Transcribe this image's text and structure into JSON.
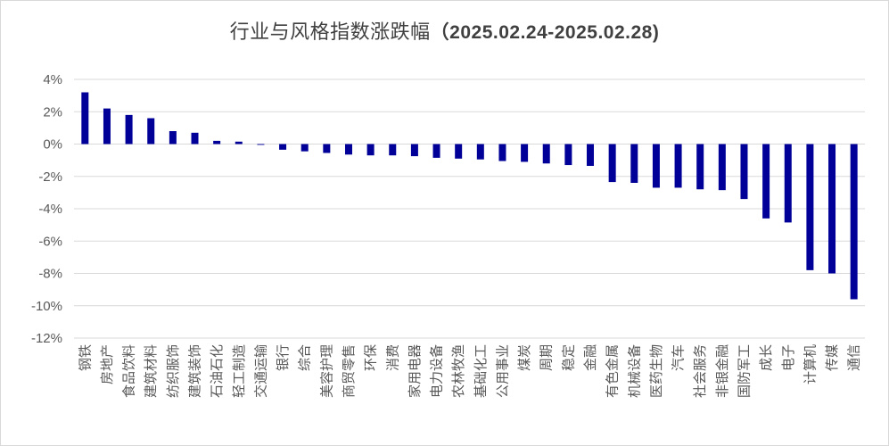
{
  "chart_data": {
    "type": "bar",
    "title": "行业与风格指数涨跌幅",
    "title_paren": "（2025.02.24-2025.02.28)",
    "ylim": [
      -12,
      4
    ],
    "yticks": [
      4,
      2,
      0,
      -2,
      -4,
      -6,
      -8,
      -10,
      -12
    ],
    "ytick_labels": [
      "4%",
      "2%",
      "0%",
      "-2%",
      "-4%",
      "-6%",
      "-8%",
      "-10%",
      "-12%"
    ],
    "grid": true,
    "bar_color": "#000099",
    "categories": [
      "钢铁",
      "房地产",
      "食品饮料",
      "建筑材料",
      "纺织服饰",
      "建筑装饰",
      "石油石化",
      "轻工制造",
      "交通运输",
      "银行",
      "综合",
      "美容护理",
      "商贸零售",
      "环保",
      "消费",
      "家用电器",
      "电力设备",
      "农林牧渔",
      "基础化工",
      "公用事业",
      "煤炭",
      "周期",
      "稳定",
      "金融",
      "有色金属",
      "机械设备",
      "医药生物",
      "汽车",
      "社会服务",
      "非银金融",
      "国防军工",
      "成长",
      "电子",
      "计算机",
      "传媒",
      "通信"
    ],
    "values": [
      3.2,
      2.2,
      1.8,
      1.6,
      0.8,
      0.7,
      0.2,
      0.15,
      -0.05,
      -0.35,
      -0.45,
      -0.55,
      -0.65,
      -0.7,
      -0.7,
      -0.75,
      -0.85,
      -0.9,
      -0.95,
      -1.05,
      -1.1,
      -1.2,
      -1.3,
      -1.35,
      -2.35,
      -2.4,
      -2.7,
      -2.7,
      -2.8,
      -2.85,
      -3.4,
      -4.6,
      -4.85,
      -7.8,
      -8.0,
      -9.6
    ]
  }
}
